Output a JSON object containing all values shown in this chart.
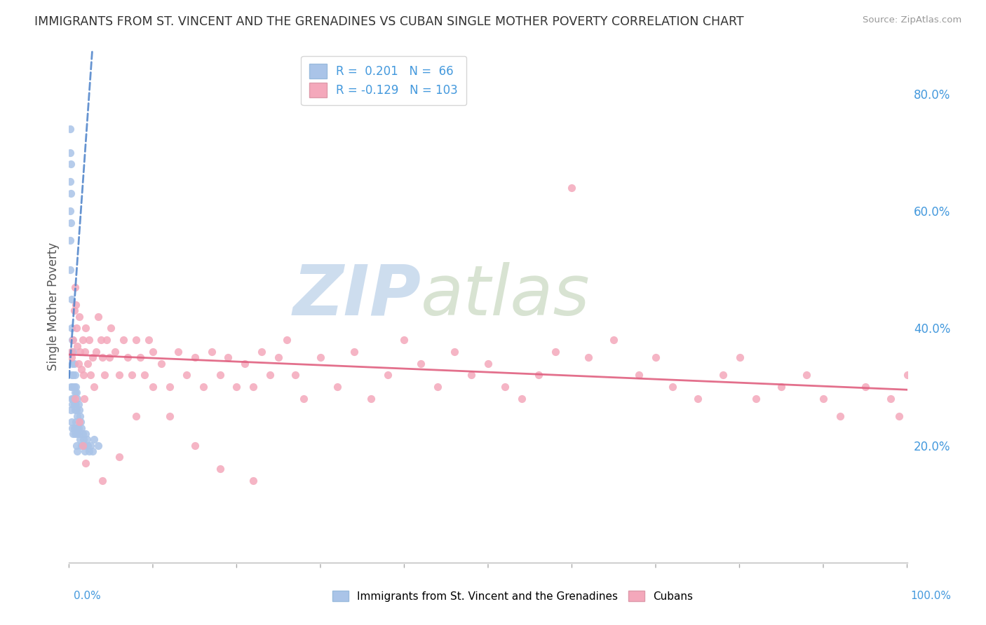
{
  "title": "IMMIGRANTS FROM ST. VINCENT AND THE GRENADINES VS CUBAN SINGLE MOTHER POVERTY CORRELATION CHART",
  "source": "Source: ZipAtlas.com",
  "ylabel": "Single Mother Poverty",
  "r_blue": 0.201,
  "n_blue": 66,
  "r_pink": -0.129,
  "n_pink": 103,
  "blue_color": "#aac4e8",
  "pink_color": "#f4a8bb",
  "blue_line_color": "#5588cc",
  "pink_line_color": "#e06080",
  "watermark_zip": "ZIP",
  "watermark_atlas": "atlas",
  "watermark_color_zip": "#b8cfe8",
  "watermark_color_atlas": "#c8d8c0",
  "background": "#ffffff",
  "grid_color": "#cccccc",
  "ytick_color": "#4499dd",
  "xtick_label_color": "#4499dd",
  "legend_text_color": "#4499dd",
  "title_color": "#333333",
  "source_color": "#999999",
  "ylabel_color": "#555555",
  "blue_x": [
    0.001,
    0.001,
    0.001,
    0.001,
    0.001,
    0.001,
    0.002,
    0.002,
    0.002,
    0.002,
    0.002,
    0.003,
    0.003,
    0.003,
    0.003,
    0.003,
    0.003,
    0.004,
    0.004,
    0.004,
    0.004,
    0.004,
    0.005,
    0.005,
    0.005,
    0.005,
    0.006,
    0.006,
    0.006,
    0.006,
    0.007,
    0.007,
    0.007,
    0.007,
    0.008,
    0.008,
    0.008,
    0.009,
    0.009,
    0.009,
    0.009,
    0.01,
    0.01,
    0.01,
    0.01,
    0.011,
    0.011,
    0.012,
    0.012,
    0.013,
    0.013,
    0.014,
    0.015,
    0.015,
    0.016,
    0.017,
    0.018,
    0.019,
    0.02,
    0.021,
    0.022,
    0.024,
    0.026,
    0.028,
    0.03,
    0.035
  ],
  "blue_y": [
    0.74,
    0.7,
    0.65,
    0.6,
    0.55,
    0.5,
    0.68,
    0.63,
    0.58,
    0.3,
    0.26,
    0.45,
    0.4,
    0.36,
    0.32,
    0.28,
    0.24,
    0.38,
    0.34,
    0.3,
    0.27,
    0.23,
    0.36,
    0.32,
    0.28,
    0.22,
    0.34,
    0.3,
    0.27,
    0.23,
    0.32,
    0.29,
    0.26,
    0.22,
    0.3,
    0.27,
    0.24,
    0.29,
    0.26,
    0.23,
    0.2,
    0.28,
    0.25,
    0.22,
    0.19,
    0.27,
    0.23,
    0.26,
    0.22,
    0.25,
    0.21,
    0.24,
    0.23,
    0.2,
    0.22,
    0.21,
    0.2,
    0.19,
    0.22,
    0.21,
    0.2,
    0.19,
    0.2,
    0.19,
    0.21,
    0.2
  ],
  "pink_x": [
    0.003,
    0.005,
    0.006,
    0.007,
    0.008,
    0.009,
    0.01,
    0.011,
    0.012,
    0.013,
    0.015,
    0.016,
    0.017,
    0.018,
    0.019,
    0.02,
    0.022,
    0.024,
    0.026,
    0.028,
    0.03,
    0.032,
    0.035,
    0.038,
    0.04,
    0.042,
    0.045,
    0.048,
    0.05,
    0.055,
    0.06,
    0.065,
    0.07,
    0.075,
    0.08,
    0.085,
    0.09,
    0.095,
    0.1,
    0.11,
    0.12,
    0.13,
    0.14,
    0.15,
    0.16,
    0.17,
    0.18,
    0.19,
    0.2,
    0.21,
    0.22,
    0.23,
    0.24,
    0.25,
    0.26,
    0.27,
    0.28,
    0.3,
    0.32,
    0.34,
    0.36,
    0.38,
    0.4,
    0.42,
    0.44,
    0.46,
    0.48,
    0.5,
    0.52,
    0.54,
    0.56,
    0.58,
    0.6,
    0.62,
    0.65,
    0.68,
    0.7,
    0.72,
    0.75,
    0.78,
    0.8,
    0.82,
    0.85,
    0.88,
    0.9,
    0.92,
    0.95,
    0.98,
    0.99,
    1.0,
    0.003,
    0.007,
    0.012,
    0.016,
    0.02,
    0.04,
    0.06,
    0.08,
    0.1,
    0.12,
    0.15,
    0.18,
    0.22
  ],
  "pink_y": [
    0.35,
    0.38,
    0.43,
    0.47,
    0.44,
    0.4,
    0.37,
    0.34,
    0.42,
    0.36,
    0.33,
    0.38,
    0.32,
    0.28,
    0.36,
    0.4,
    0.34,
    0.38,
    0.32,
    0.35,
    0.3,
    0.36,
    0.42,
    0.38,
    0.35,
    0.32,
    0.38,
    0.35,
    0.4,
    0.36,
    0.32,
    0.38,
    0.35,
    0.32,
    0.38,
    0.35,
    0.32,
    0.38,
    0.36,
    0.34,
    0.3,
    0.36,
    0.32,
    0.35,
    0.3,
    0.36,
    0.32,
    0.35,
    0.3,
    0.34,
    0.3,
    0.36,
    0.32,
    0.35,
    0.38,
    0.32,
    0.28,
    0.35,
    0.3,
    0.36,
    0.28,
    0.32,
    0.38,
    0.34,
    0.3,
    0.36,
    0.32,
    0.34,
    0.3,
    0.28,
    0.32,
    0.36,
    0.64,
    0.35,
    0.38,
    0.32,
    0.35,
    0.3,
    0.28,
    0.32,
    0.35,
    0.28,
    0.3,
    0.32,
    0.28,
    0.25,
    0.3,
    0.28,
    0.25,
    0.32,
    0.36,
    0.28,
    0.24,
    0.2,
    0.17,
    0.14,
    0.18,
    0.25,
    0.3,
    0.25,
    0.2,
    0.16,
    0.14
  ],
  "blue_trend_x0": 0.0,
  "blue_trend_x1": 0.028,
  "blue_trend_y0": 0.315,
  "blue_trend_y1": 0.88,
  "pink_trend_x0": 0.0,
  "pink_trend_x1": 1.0,
  "pink_trend_y0": 0.355,
  "pink_trend_y1": 0.295,
  "xlim": [
    0.0,
    1.0
  ],
  "ylim": [
    0.0,
    0.875
  ],
  "yticks": [
    0.2,
    0.4,
    0.6,
    0.8
  ],
  "ytick_labels": [
    "20.0%",
    "40.0%",
    "60.0%",
    "80.0%"
  ]
}
